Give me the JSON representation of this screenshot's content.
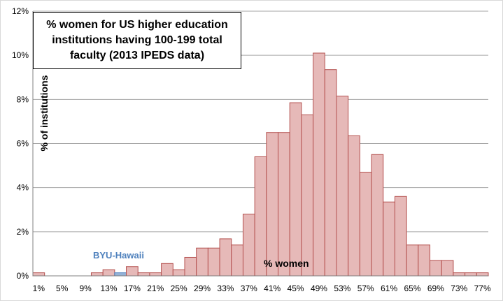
{
  "chart_data": {
    "type": "bar",
    "title": "% women for US higher education institutions having 100-199 total faculty (2013 IPEDS data)",
    "xlabel": "% women",
    "ylabel": "% of institutions",
    "ylim": [
      0,
      12
    ],
    "yticks": [
      "0%",
      "2%",
      "4%",
      "6%",
      "8%",
      "10%",
      "12%"
    ],
    "grid": true,
    "bin_labels": [
      "1%",
      "3%",
      "5%",
      "7%",
      "9%",
      "11%",
      "13%",
      "15%",
      "17%",
      "19%",
      "21%",
      "23%",
      "25%",
      "27%",
      "29%",
      "31%",
      "33%",
      "35%",
      "37%",
      "39%",
      "41%",
      "43%",
      "45%",
      "47%",
      "49%",
      "51%",
      "53%",
      "55%",
      "57%",
      "59%",
      "61%",
      "63%",
      "65%",
      "67%",
      "69%",
      "71%",
      "73%",
      "75%",
      "77%"
    ],
    "visible_tick_labels": [
      "1%",
      "5%",
      "9%",
      "13%",
      "17%",
      "21%",
      "25%",
      "29%",
      "33%",
      "37%",
      "41%",
      "45%",
      "49%",
      "53%",
      "57%",
      "61%",
      "65%",
      "69%",
      "73%",
      "77%"
    ],
    "values": [
      0.14,
      0,
      0,
      0,
      0,
      0.14,
      0.28,
      0.14,
      0.42,
      0.14,
      0.14,
      0.56,
      0.28,
      0.84,
      1.26,
      1.26,
      1.68,
      1.4,
      2.8,
      5.4,
      6.5,
      6.5,
      7.85,
      7.3,
      10.1,
      9.35,
      8.15,
      6.35,
      4.7,
      5.5,
      3.35,
      3.6,
      1.4,
      1.4,
      0.7,
      0.7,
      0.14,
      0.14,
      0.14
    ],
    "colors": {
      "bar": "#e6b9b8",
      "bar_edge": "#b4514f",
      "highlight_bar": "#95b3d7",
      "highlight_edge": "#4f81bd",
      "grid": "#a6a6a6"
    },
    "highlight": {
      "label": "BYU-Hawaii",
      "bin": "15%"
    }
  }
}
